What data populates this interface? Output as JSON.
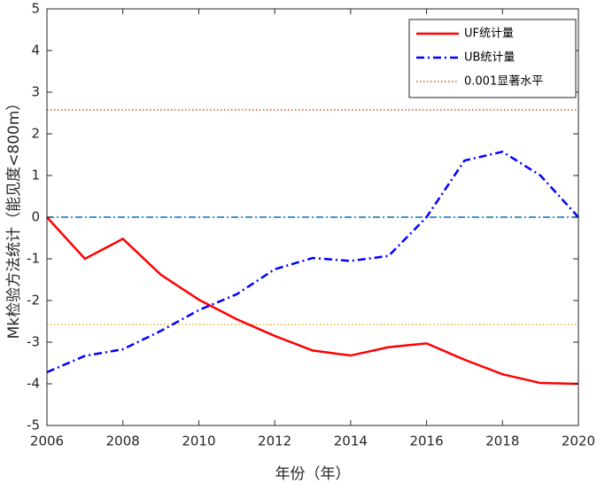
{
  "chart_data": {
    "type": "line",
    "xlabel": "年份（年）",
    "ylabel": "Mk检验方法统计（能见度<800m）",
    "x": [
      2006,
      2007,
      2008,
      2009,
      2010,
      2011,
      2012,
      2013,
      2014,
      2015,
      2016,
      2017,
      2018,
      2019,
      2020
    ],
    "series": [
      {
        "name": "UF统计量",
        "color": "#ff0000",
        "style": "solid",
        "values": [
          0,
          -1.0,
          -0.52,
          -1.38,
          -1.98,
          -2.45,
          -2.85,
          -3.2,
          -3.32,
          -3.12,
          -3.03,
          -3.42,
          -3.77,
          -3.98,
          -4.0
        ]
      },
      {
        "name": "UB统计量",
        "color": "#0000ff",
        "style": "dashdot",
        "values": [
          -3.72,
          -3.33,
          -3.17,
          -2.73,
          -2.23,
          -1.85,
          -1.25,
          -0.98,
          -1.05,
          -0.93,
          0.0,
          1.36,
          1.57,
          1.0,
          0
        ]
      }
    ],
    "thresholds": {
      "name": "0.001显著水平",
      "values": [
        2.576,
        -2.576
      ],
      "colors": [
        "#d95319",
        "#edb120"
      ]
    },
    "zero_line": {
      "value": 0,
      "color": "#0072bd"
    },
    "xlim": [
      2006,
      2020
    ],
    "xticks": [
      2006,
      2008,
      2010,
      2012,
      2014,
      2016,
      2018,
      2020
    ],
    "ylim": [
      -5,
      5
    ],
    "yticks": [
      -5,
      -4,
      -3,
      -2,
      -1,
      0,
      1,
      2,
      3,
      4,
      5
    ],
    "legend": "upper right"
  }
}
